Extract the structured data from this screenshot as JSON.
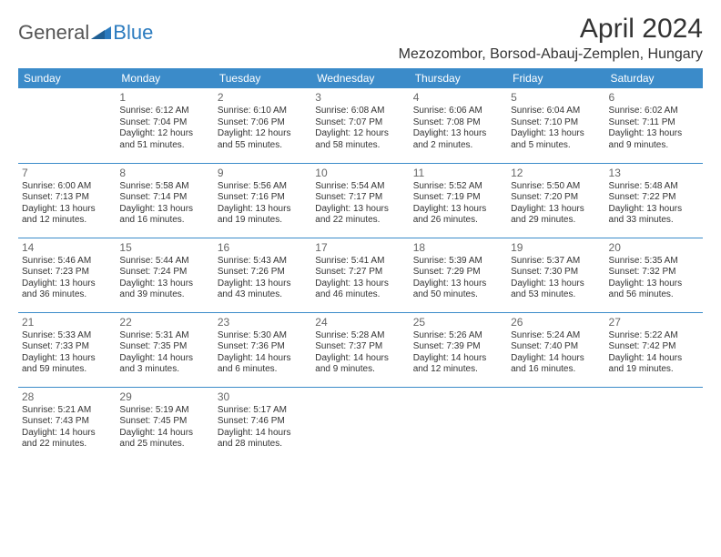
{
  "logo": {
    "general": "General",
    "blue": "Blue"
  },
  "title": "April 2024",
  "location": "Mezozombor, Borsod-Abauj-Zemplen, Hungary",
  "header_bg": "#3b8bc9",
  "header_fg": "#ffffff",
  "border_color": "#3b8bc9",
  "days": [
    "Sunday",
    "Monday",
    "Tuesday",
    "Wednesday",
    "Thursday",
    "Friday",
    "Saturday"
  ],
  "weeks": [
    [
      {
        "n": "",
        "sr": "",
        "ss": "",
        "dl": ""
      },
      {
        "n": "1",
        "sr": "Sunrise: 6:12 AM",
        "ss": "Sunset: 7:04 PM",
        "dl": "Daylight: 12 hours and 51 minutes."
      },
      {
        "n": "2",
        "sr": "Sunrise: 6:10 AM",
        "ss": "Sunset: 7:06 PM",
        "dl": "Daylight: 12 hours and 55 minutes."
      },
      {
        "n": "3",
        "sr": "Sunrise: 6:08 AM",
        "ss": "Sunset: 7:07 PM",
        "dl": "Daylight: 12 hours and 58 minutes."
      },
      {
        "n": "4",
        "sr": "Sunrise: 6:06 AM",
        "ss": "Sunset: 7:08 PM",
        "dl": "Daylight: 13 hours and 2 minutes."
      },
      {
        "n": "5",
        "sr": "Sunrise: 6:04 AM",
        "ss": "Sunset: 7:10 PM",
        "dl": "Daylight: 13 hours and 5 minutes."
      },
      {
        "n": "6",
        "sr": "Sunrise: 6:02 AM",
        "ss": "Sunset: 7:11 PM",
        "dl": "Daylight: 13 hours and 9 minutes."
      }
    ],
    [
      {
        "n": "7",
        "sr": "Sunrise: 6:00 AM",
        "ss": "Sunset: 7:13 PM",
        "dl": "Daylight: 13 hours and 12 minutes."
      },
      {
        "n": "8",
        "sr": "Sunrise: 5:58 AM",
        "ss": "Sunset: 7:14 PM",
        "dl": "Daylight: 13 hours and 16 minutes."
      },
      {
        "n": "9",
        "sr": "Sunrise: 5:56 AM",
        "ss": "Sunset: 7:16 PM",
        "dl": "Daylight: 13 hours and 19 minutes."
      },
      {
        "n": "10",
        "sr": "Sunrise: 5:54 AM",
        "ss": "Sunset: 7:17 PM",
        "dl": "Daylight: 13 hours and 22 minutes."
      },
      {
        "n": "11",
        "sr": "Sunrise: 5:52 AM",
        "ss": "Sunset: 7:19 PM",
        "dl": "Daylight: 13 hours and 26 minutes."
      },
      {
        "n": "12",
        "sr": "Sunrise: 5:50 AM",
        "ss": "Sunset: 7:20 PM",
        "dl": "Daylight: 13 hours and 29 minutes."
      },
      {
        "n": "13",
        "sr": "Sunrise: 5:48 AM",
        "ss": "Sunset: 7:22 PM",
        "dl": "Daylight: 13 hours and 33 minutes."
      }
    ],
    [
      {
        "n": "14",
        "sr": "Sunrise: 5:46 AM",
        "ss": "Sunset: 7:23 PM",
        "dl": "Daylight: 13 hours and 36 minutes."
      },
      {
        "n": "15",
        "sr": "Sunrise: 5:44 AM",
        "ss": "Sunset: 7:24 PM",
        "dl": "Daylight: 13 hours and 39 minutes."
      },
      {
        "n": "16",
        "sr": "Sunrise: 5:43 AM",
        "ss": "Sunset: 7:26 PM",
        "dl": "Daylight: 13 hours and 43 minutes."
      },
      {
        "n": "17",
        "sr": "Sunrise: 5:41 AM",
        "ss": "Sunset: 7:27 PM",
        "dl": "Daylight: 13 hours and 46 minutes."
      },
      {
        "n": "18",
        "sr": "Sunrise: 5:39 AM",
        "ss": "Sunset: 7:29 PM",
        "dl": "Daylight: 13 hours and 50 minutes."
      },
      {
        "n": "19",
        "sr": "Sunrise: 5:37 AM",
        "ss": "Sunset: 7:30 PM",
        "dl": "Daylight: 13 hours and 53 minutes."
      },
      {
        "n": "20",
        "sr": "Sunrise: 5:35 AM",
        "ss": "Sunset: 7:32 PM",
        "dl": "Daylight: 13 hours and 56 minutes."
      }
    ],
    [
      {
        "n": "21",
        "sr": "Sunrise: 5:33 AM",
        "ss": "Sunset: 7:33 PM",
        "dl": "Daylight: 13 hours and 59 minutes."
      },
      {
        "n": "22",
        "sr": "Sunrise: 5:31 AM",
        "ss": "Sunset: 7:35 PM",
        "dl": "Daylight: 14 hours and 3 minutes."
      },
      {
        "n": "23",
        "sr": "Sunrise: 5:30 AM",
        "ss": "Sunset: 7:36 PM",
        "dl": "Daylight: 14 hours and 6 minutes."
      },
      {
        "n": "24",
        "sr": "Sunrise: 5:28 AM",
        "ss": "Sunset: 7:37 PM",
        "dl": "Daylight: 14 hours and 9 minutes."
      },
      {
        "n": "25",
        "sr": "Sunrise: 5:26 AM",
        "ss": "Sunset: 7:39 PM",
        "dl": "Daylight: 14 hours and 12 minutes."
      },
      {
        "n": "26",
        "sr": "Sunrise: 5:24 AM",
        "ss": "Sunset: 7:40 PM",
        "dl": "Daylight: 14 hours and 16 minutes."
      },
      {
        "n": "27",
        "sr": "Sunrise: 5:22 AM",
        "ss": "Sunset: 7:42 PM",
        "dl": "Daylight: 14 hours and 19 minutes."
      }
    ],
    [
      {
        "n": "28",
        "sr": "Sunrise: 5:21 AM",
        "ss": "Sunset: 7:43 PM",
        "dl": "Daylight: 14 hours and 22 minutes."
      },
      {
        "n": "29",
        "sr": "Sunrise: 5:19 AM",
        "ss": "Sunset: 7:45 PM",
        "dl": "Daylight: 14 hours and 25 minutes."
      },
      {
        "n": "30",
        "sr": "Sunrise: 5:17 AM",
        "ss": "Sunset: 7:46 PM",
        "dl": "Daylight: 14 hours and 28 minutes."
      },
      {
        "n": "",
        "sr": "",
        "ss": "",
        "dl": ""
      },
      {
        "n": "",
        "sr": "",
        "ss": "",
        "dl": ""
      },
      {
        "n": "",
        "sr": "",
        "ss": "",
        "dl": ""
      },
      {
        "n": "",
        "sr": "",
        "ss": "",
        "dl": ""
      }
    ]
  ]
}
